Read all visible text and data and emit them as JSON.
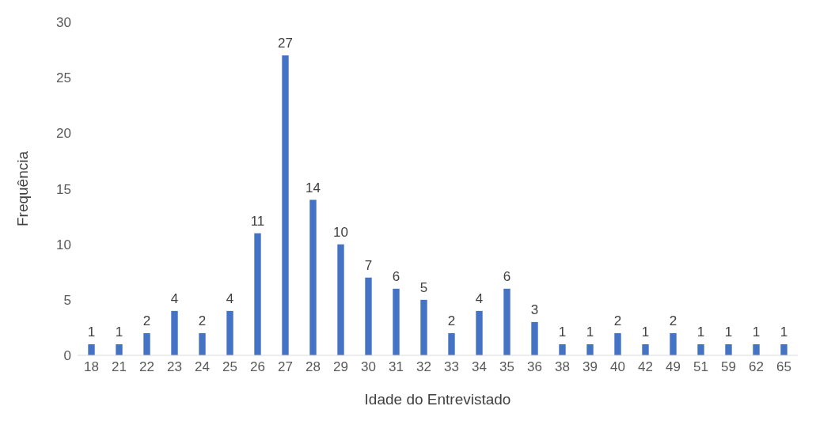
{
  "chart_data": {
    "type": "bar",
    "xlabel": "Idade do Entrevistado",
    "ylabel": "Frequência",
    "categories": [
      "18",
      "21",
      "22",
      "23",
      "24",
      "25",
      "26",
      "27",
      "28",
      "29",
      "30",
      "31",
      "32",
      "33",
      "34",
      "35",
      "36",
      "38",
      "39",
      "40",
      "42",
      "49",
      "51",
      "59",
      "62",
      "65"
    ],
    "values": [
      1,
      1,
      2,
      4,
      2,
      4,
      11,
      27,
      14,
      10,
      7,
      6,
      5,
      2,
      4,
      6,
      3,
      1,
      1,
      2,
      1,
      2,
      1,
      1,
      1,
      1
    ],
    "color": "#4472c4",
    "ylim": [
      0,
      30
    ],
    "yticks": [
      0,
      5,
      10,
      15,
      20,
      25,
      30
    ],
    "grid": false,
    "data_labels": true
  }
}
